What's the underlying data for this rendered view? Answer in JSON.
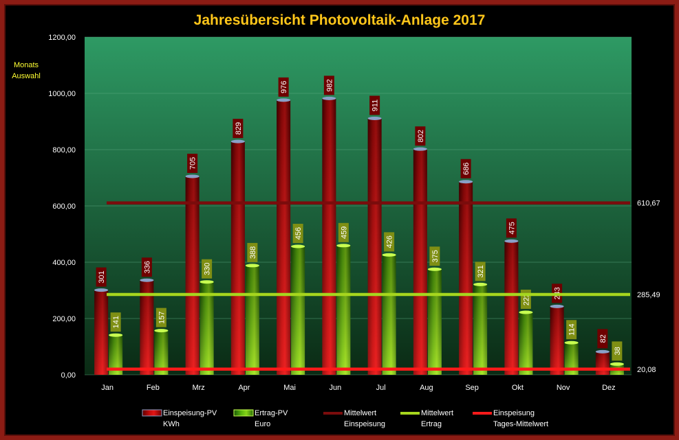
{
  "chart_data": {
    "type": "bar",
    "title": "Jahresübersicht Photovoltaik-Anlage  2017",
    "side_label": [
      "Monats",
      "Auswahl"
    ],
    "categories": [
      "Jan",
      "Feb",
      "Mrz",
      "Apr",
      "Mai",
      "Jun",
      "Jul",
      "Aug",
      "Sep",
      "Okt",
      "Nov",
      "Dez"
    ],
    "ylim": [
      0,
      1200
    ],
    "yticks": [
      "0,00",
      "200,00",
      "400,00",
      "600,00",
      "800,00",
      "1000,00",
      "1200,00"
    ],
    "series": [
      {
        "name": "Einspeisung-PV KWh",
        "values": [
          301,
          336,
          705,
          829,
          976,
          982,
          911,
          802,
          686,
          475,
          243,
          82
        ]
      },
      {
        "name": "Ertrag-PV Euro",
        "values": [
          141,
          157,
          330,
          388,
          456,
          459,
          426,
          375,
          321,
          222,
          114,
          38
        ]
      }
    ],
    "reference_lines": [
      {
        "name": "Mittelwert Einspeisung",
        "value": 610.67,
        "label": "610,67",
        "color": "#7a0c0c"
      },
      {
        "name": "Mittelwert Ertrag",
        "value": 285.49,
        "label": "285,49",
        "color": "#a6d61e"
      },
      {
        "name": "Einspeisung Tages-Mittelwert",
        "value": 20.08,
        "label": "20,08",
        "color": "#ff1a1a"
      }
    ],
    "legend": {
      "placement": "bottom",
      "items": [
        {
          "line1": "Einspeisung-PV",
          "line2": "KWh",
          "kind": "bar-red"
        },
        {
          "line1": "Ertrag-PV",
          "line2": "Euro",
          "kind": "bar-green"
        },
        {
          "line1": "Mittelwert",
          "line2": "Einspeisung",
          "kind": "line",
          "color": "#7a0c0c"
        },
        {
          "line1": "Mittelwert",
          "line2": "Ertrag",
          "kind": "line",
          "color": "#a6d61e"
        },
        {
          "line1": "Einspeisung",
          "line2": "Tages-Mittelwert",
          "kind": "line",
          "color": "#ff1a1a"
        }
      ]
    },
    "colors": {
      "plot_top": "#2e9a64",
      "plot_bottom": "#0a2a14",
      "red_bar": "#e01010",
      "green_bar": "#7acc10",
      "red_label_bg": "#6e0000",
      "green_label_bg": "#7f8f14",
      "axis_text": "#ffffff",
      "title": "#ffc61a"
    }
  }
}
